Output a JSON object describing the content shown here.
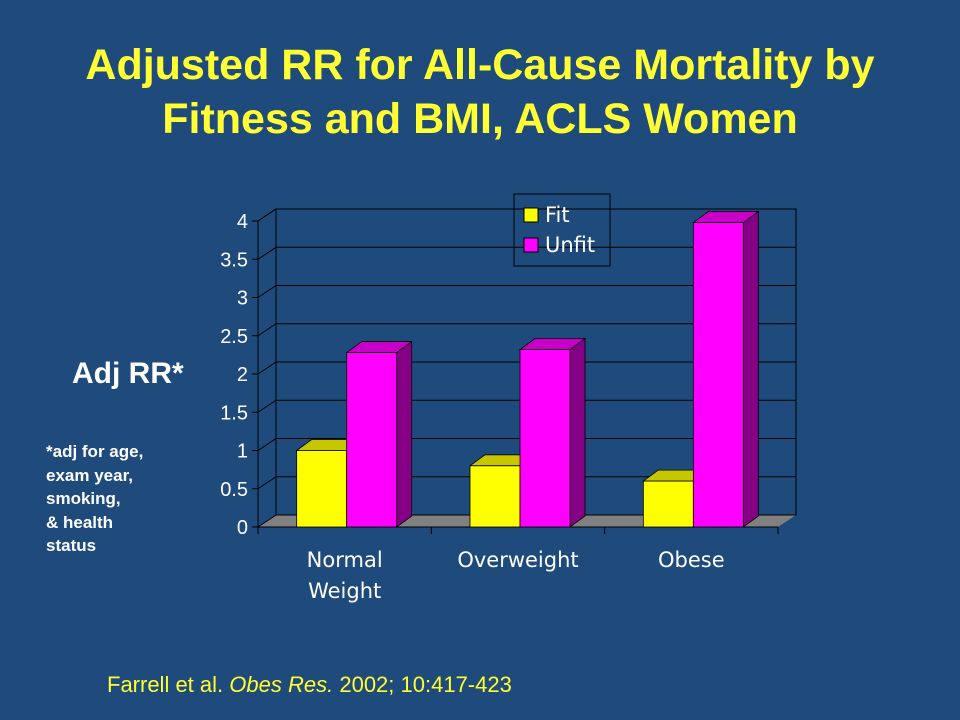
{
  "title": {
    "line1": "Adjusted RR for All-Cause Mortality by",
    "line2": "Fitness and BMI, ACLS Women"
  },
  "ylabel": "Adj RR*",
  "footnote": {
    "line1": "*adj for age,",
    "line2": "exam year,",
    "line3": "smoking,",
    "line4": "& health",
    "line5": "status"
  },
  "citation": {
    "authors": "Farrell et al.",
    "journal": "Obes Res.",
    "details": "2002; 10:417-423"
  },
  "colors": {
    "background": "#1f4a7c",
    "title": "#ffff33",
    "fit": "#ffff00",
    "unfit": "#ff00ff",
    "floor": "#808080"
  },
  "chart_data": {
    "type": "bar",
    "categories": [
      {
        "line1": "Normal",
        "line2": "Weight"
      },
      {
        "line1": "Overweight",
        "line2": ""
      },
      {
        "line1": "Obese",
        "line2": ""
      }
    ],
    "series": [
      {
        "name": "Fit",
        "values": [
          1.0,
          0.8,
          0.6
        ]
      },
      {
        "name": "Unfit",
        "values": [
          2.28,
          2.32,
          3.98
        ]
      }
    ],
    "yticks": [
      "0",
      "0.5",
      "1",
      "1.5",
      "2",
      "2.5",
      "3",
      "3.5",
      "4"
    ],
    "ylim": [
      0,
      4
    ],
    "grid": true,
    "legend": "top-right, inside plot"
  }
}
